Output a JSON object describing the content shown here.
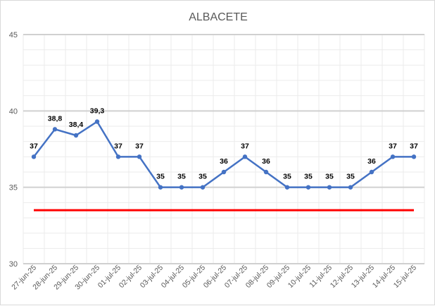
{
  "chart_data": {
    "type": "line",
    "title": "ALBACETE",
    "xlabel": "",
    "ylabel": "",
    "ylim": [
      30,
      45
    ],
    "yticks": [
      30,
      35,
      40,
      45
    ],
    "grid": true,
    "legend": "none",
    "categories": [
      "27-jun-25",
      "28-jun-25",
      "29-jun-25",
      "30-jun-25",
      "01-jul-25",
      "02-jul-25",
      "03-jul-25",
      "04-jul-25",
      "05-jul-25",
      "06-jul-25",
      "07-jul-25",
      "08-jul-25",
      "09-jul-25",
      "10-jul-25",
      "11-jul-25",
      "12-jul-25",
      "13-jul-25",
      "14-jul-25",
      "15-jul-25"
    ],
    "series": [
      {
        "values": [
          37,
          38.8,
          38.4,
          39.3,
          37,
          37,
          35,
          35,
          35,
          36,
          37,
          36,
          35,
          35,
          35,
          35,
          36,
          37,
          37
        ],
        "data_labels": [
          "37",
          "38,8",
          "38,4",
          "39,3",
          "37",
          "37",
          "35",
          "35",
          "35",
          "36",
          "37",
          "36",
          "35",
          "35",
          "35",
          "35",
          "36",
          "37",
          "37"
        ],
        "color": "#4472c4"
      },
      {
        "values": [
          33.5,
          33.5,
          33.5,
          33.5,
          33.5,
          33.5,
          33.5,
          33.5,
          33.5,
          33.5,
          33.5,
          33.5,
          33.5,
          33.5,
          33.5,
          33.5,
          33.5,
          33.5,
          33.5
        ],
        "color": "#ff0000"
      }
    ]
  }
}
